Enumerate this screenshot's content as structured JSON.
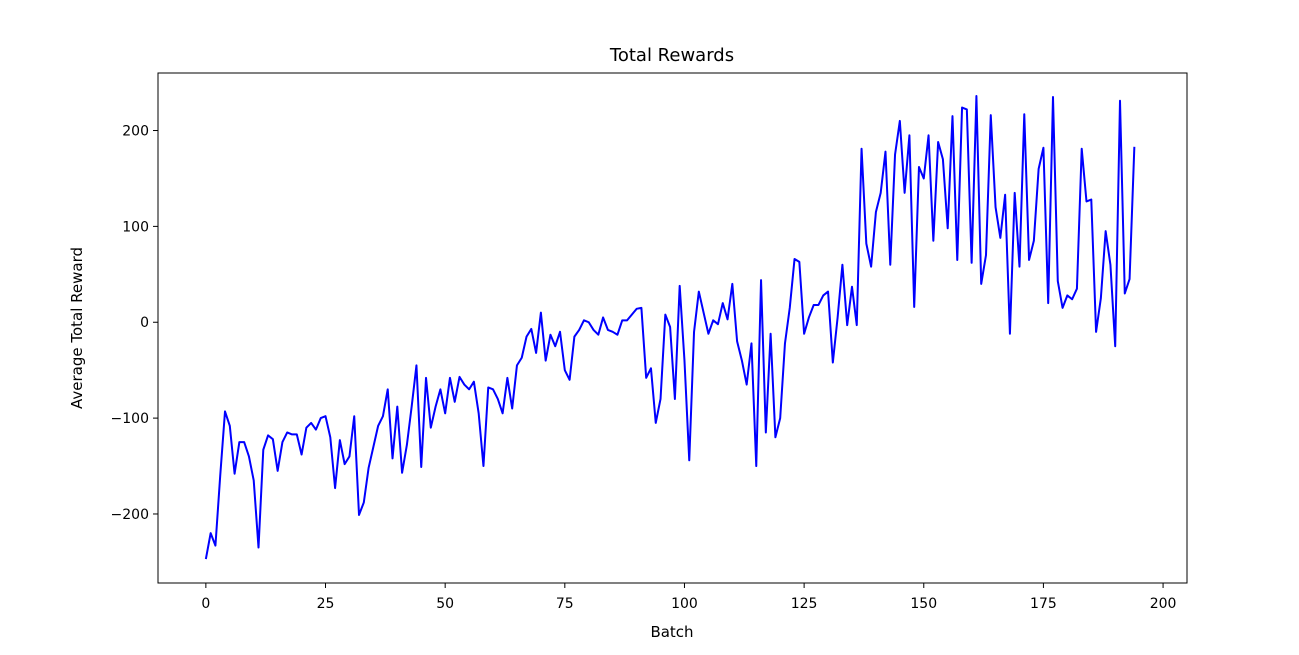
{
  "chart_data": {
    "type": "line",
    "title": "Total Rewards",
    "xlabel": "Batch",
    "ylabel": "Average Total Reward",
    "xlim": [
      -10,
      205
    ],
    "ylim": [
      -272,
      260
    ],
    "xticks": [
      0,
      25,
      50,
      75,
      100,
      125,
      150,
      175,
      200
    ],
    "yticks": [
      -200,
      -100,
      0,
      100,
      200
    ],
    "ytick_labels": [
      "−200",
      "−100",
      "0",
      "100",
      "200"
    ],
    "grid": false,
    "line_color": "#0000ff",
    "series": [
      {
        "values": [
          -247,
          -220,
          -233,
          -160,
          -93,
          -108,
          -158,
          -125,
          -125,
          -140,
          -165,
          -235,
          -133,
          -118,
          -122,
          -155,
          -125,
          -115,
          -117,
          -117,
          -138,
          -110,
          -105,
          -112,
          -100,
          -98,
          -120,
          -173,
          -123,
          -148,
          -140,
          -98,
          -201,
          -188,
          -152,
          -130,
          -108,
          -98,
          -70,
          -142,
          -88,
          -157,
          -128,
          -88,
          -45,
          -151,
          -58,
          -110,
          -88,
          -70,
          -95,
          -58,
          -83,
          -57,
          -65,
          -70,
          -62,
          -95,
          -150,
          -68,
          -70,
          -80,
          -95,
          -58,
          -90,
          -45,
          -37,
          -15,
          -7,
          -32,
          10,
          -40,
          -13,
          -25,
          -10,
          -50,
          -60,
          -15,
          -8,
          2,
          0,
          -8,
          -13,
          5,
          -8,
          -10,
          -13,
          2,
          2,
          8,
          14,
          15,
          -58,
          -48,
          -105,
          -80,
          8,
          -5,
          -80,
          38,
          -40,
          -144,
          -10,
          32,
          10,
          -12,
          2,
          -2,
          20,
          3,
          40,
          -20,
          -40,
          -65,
          -22,
          -150,
          44,
          -115,
          -12,
          -120,
          -100,
          -22,
          15,
          66,
          63,
          -12,
          5,
          18,
          18,
          28,
          32,
          -42,
          5,
          60,
          -3,
          37,
          -3,
          181,
          82,
          58,
          115,
          135,
          178,
          60,
          175,
          210,
          135,
          195,
          16,
          162,
          150,
          195,
          85,
          188,
          170,
          98,
          215,
          65,
          224,
          222,
          62,
          236,
          40,
          70,
          216,
          120,
          88,
          133,
          -12,
          135,
          58,
          217,
          65,
          85,
          160,
          182,
          20,
          235,
          43,
          15,
          28,
          24,
          35,
          181,
          126,
          128,
          -10,
          25,
          95,
          60,
          -25,
          231,
          30,
          45,
          183
        ]
      }
    ]
  }
}
